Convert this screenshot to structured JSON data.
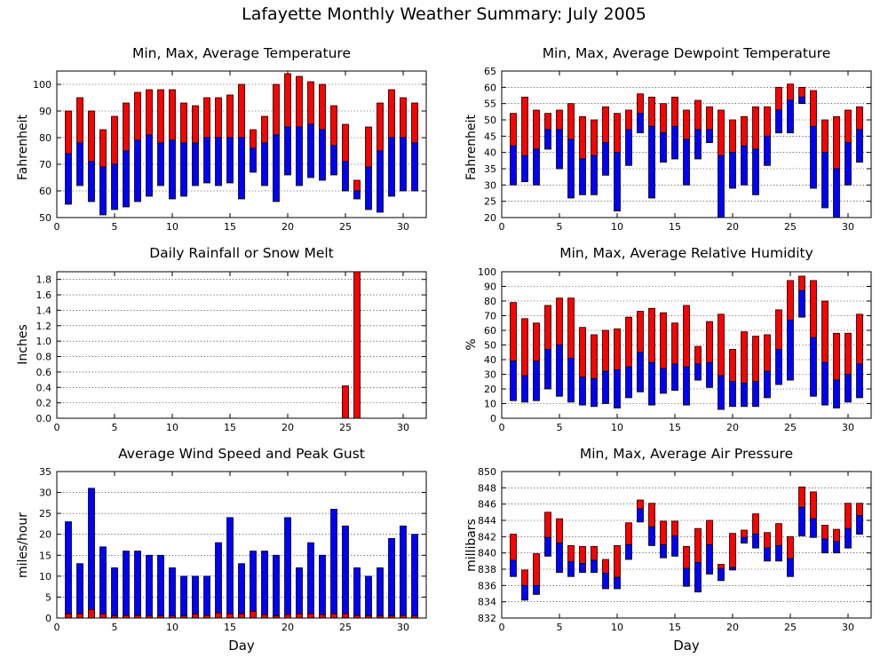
{
  "title": "Lafayette Monthly Weather Summary: July 2005",
  "colors": {
    "red": "#ff0000",
    "blue": "#0000ff",
    "grid": "#000000"
  },
  "chart_data": [
    {
      "id": "temp",
      "type": "bar",
      "style": "range",
      "title": "Min, Max, Average Temperature",
      "xlabel": "",
      "ylabel": "Fahrenheit",
      "xlim": [
        0,
        32
      ],
      "ylim": [
        50,
        105
      ],
      "xticks": [
        0,
        5,
        10,
        15,
        20,
        25,
        30
      ],
      "yticks": [
        50,
        60,
        70,
        80,
        90,
        100
      ],
      "days": [
        1,
        2,
        3,
        4,
        5,
        6,
        7,
        8,
        9,
        10,
        11,
        12,
        13,
        14,
        15,
        16,
        17,
        18,
        19,
        20,
        21,
        22,
        23,
        24,
        25,
        26,
        27,
        28,
        29,
        30,
        31
      ],
      "min": [
        55,
        62,
        56,
        51,
        53,
        54,
        56,
        58,
        62,
        57,
        58,
        62,
        63,
        62,
        63,
        57,
        67,
        62,
        56,
        66,
        62,
        65,
        64,
        66,
        60,
        57,
        53,
        52,
        58,
        60,
        60
      ],
      "avg": [
        74,
        78,
        71,
        69,
        70,
        75,
        79,
        81,
        78,
        79,
        78,
        78,
        80,
        80,
        80,
        80,
        76,
        78,
        81,
        84,
        84,
        85,
        83,
        77,
        71,
        60,
        69,
        75,
        80,
        80,
        78
      ],
      "max": [
        90,
        95,
        90,
        83,
        88,
        93,
        97,
        98,
        98,
        98,
        93,
        92,
        95,
        95,
        96,
        100,
        83,
        88,
        100,
        104,
        103,
        101,
        100,
        92,
        85,
        64,
        84,
        93,
        98,
        95,
        93
      ]
    },
    {
      "id": "dewpoint",
      "type": "bar",
      "style": "range",
      "title": "Min, Max, Average Dewpoint Temperature",
      "xlabel": "",
      "ylabel": "Fahrenheit",
      "xlim": [
        0,
        32
      ],
      "ylim": [
        20,
        65
      ],
      "xticks": [
        0,
        5,
        10,
        15,
        20,
        25,
        30
      ],
      "yticks": [
        20,
        25,
        30,
        35,
        40,
        45,
        50,
        55,
        60,
        65
      ],
      "days": [
        1,
        2,
        3,
        4,
        5,
        6,
        7,
        8,
        9,
        10,
        11,
        12,
        13,
        14,
        15,
        16,
        17,
        18,
        19,
        20,
        21,
        22,
        23,
        24,
        25,
        26,
        27,
        28,
        29,
        30,
        31
      ],
      "min": [
        30,
        31,
        30,
        41,
        35,
        26,
        27,
        27,
        33,
        22,
        36,
        46,
        26,
        37,
        38,
        30,
        38,
        43,
        20,
        29,
        30,
        27,
        36,
        46,
        46,
        55,
        29,
        23,
        20,
        30,
        37
      ],
      "avg": [
        42,
        39,
        41,
        47,
        47,
        44,
        38,
        39,
        43,
        40,
        47,
        52,
        48,
        46,
        48,
        44,
        47,
        47,
        39,
        40,
        42,
        41,
        45,
        53,
        56,
        57,
        48,
        40,
        35,
        43,
        47
      ],
      "max": [
        52,
        57,
        53,
        52,
        53,
        55,
        51,
        50,
        54,
        52,
        53,
        58,
        57,
        55,
        57,
        53,
        56,
        54,
        53,
        50,
        51,
        54,
        54,
        60,
        61,
        60,
        59,
        50,
        51,
        53,
        54
      ]
    },
    {
      "id": "rain",
      "type": "bar",
      "title": "Daily Rainfall or Snow Melt",
      "xlabel": "",
      "ylabel": "Inches",
      "xlim": [
        0,
        32
      ],
      "ylim": [
        0,
        1.9
      ],
      "xticks": [
        0,
        5,
        10,
        15,
        20,
        25,
        30
      ],
      "yticks": [
        "0.0",
        "0.2",
        "0.4",
        "0.6",
        "0.8",
        "1.0",
        "1.2",
        "1.4",
        "1.6",
        "1.8"
      ],
      "days": [
        25,
        26
      ],
      "values": [
        0.42,
        1.9
      ]
    },
    {
      "id": "humidity",
      "type": "bar",
      "style": "range",
      "title": "Min, Max, Average Relative Humidity",
      "xlabel": "",
      "ylabel": "%",
      "xlim": [
        0,
        32
      ],
      "ylim": [
        0,
        100
      ],
      "xticks": [
        0,
        5,
        10,
        15,
        20,
        25,
        30
      ],
      "yticks": [
        0,
        10,
        20,
        30,
        40,
        50,
        60,
        70,
        80,
        90,
        100
      ],
      "days": [
        1,
        2,
        3,
        4,
        5,
        6,
        7,
        8,
        9,
        10,
        11,
        12,
        13,
        14,
        15,
        16,
        17,
        18,
        19,
        20,
        21,
        22,
        23,
        24,
        25,
        26,
        27,
        28,
        29,
        30,
        31
      ],
      "min": [
        12,
        11,
        12,
        20,
        15,
        11,
        9,
        8,
        10,
        7,
        14,
        18,
        9,
        17,
        19,
        9,
        26,
        21,
        6,
        8,
        8,
        8,
        14,
        23,
        26,
        69,
        15,
        9,
        7,
        11,
        14
      ],
      "avg": [
        39,
        29,
        39,
        47,
        50,
        41,
        28,
        27,
        32,
        33,
        35,
        45,
        38,
        34,
        37,
        35,
        37,
        38,
        29,
        25,
        24,
        25,
        32,
        47,
        67,
        87,
        55,
        38,
        26,
        30,
        37
      ],
      "max": [
        79,
        68,
        65,
        77,
        82,
        82,
        62,
        57,
        60,
        61,
        69,
        73,
        75,
        72,
        65,
        77,
        49,
        66,
        71,
        47,
        59,
        56,
        57,
        74,
        94,
        97,
        94,
        80,
        58,
        58,
        71
      ]
    },
    {
      "id": "wind",
      "type": "bar",
      "style": "stacked",
      "title": "Average Wind Speed and Peak Gust",
      "xlabel": "Day",
      "ylabel": "miles/hour",
      "xlim": [
        0,
        32
      ],
      "ylim": [
        0,
        35
      ],
      "xticks": [
        0,
        5,
        10,
        15,
        20,
        25,
        30
      ],
      "yticks": [
        0,
        5,
        10,
        15,
        20,
        25,
        30,
        35
      ],
      "days": [
        1,
        2,
        3,
        4,
        5,
        6,
        7,
        8,
        9,
        10,
        11,
        12,
        13,
        14,
        15,
        16,
        17,
        18,
        19,
        20,
        21,
        22,
        23,
        24,
        25,
        26,
        27,
        28,
        29,
        30,
        31
      ],
      "avg": [
        1,
        1,
        2,
        1,
        0.5,
        0.6,
        0.6,
        0.5,
        0.5,
        0.5,
        0.5,
        0.9,
        0.6,
        1.2,
        1,
        1,
        1.6,
        0.8,
        0.5,
        0.8,
        1,
        1,
        0.8,
        1,
        1,
        0.6,
        0.5,
        0.5,
        0.5,
        0.6,
        0.5
      ],
      "gust": [
        23,
        13,
        31,
        17,
        12,
        16,
        16,
        15,
        15,
        12,
        10,
        10,
        10,
        18,
        24,
        13,
        16,
        16,
        15,
        24,
        12,
        18,
        15,
        26,
        22,
        12,
        10,
        12,
        19,
        22,
        20
      ]
    },
    {
      "id": "pressure",
      "type": "bar",
      "style": "range",
      "title": "Min, Max, Average Air Pressure",
      "xlabel": "Day",
      "ylabel": "millibars",
      "xlim": [
        0,
        32
      ],
      "ylim": [
        832,
        850
      ],
      "xticks": [
        0,
        5,
        10,
        15,
        20,
        25,
        30
      ],
      "yticks": [
        832,
        834,
        836,
        838,
        840,
        842,
        844,
        846,
        848,
        850
      ],
      "days": [
        1,
        2,
        3,
        4,
        5,
        6,
        7,
        8,
        9,
        10,
        11,
        12,
        13,
        14,
        15,
        16,
        17,
        18,
        19,
        20,
        21,
        22,
        23,
        24,
        25,
        26,
        27,
        28,
        29,
        30,
        31
      ],
      "min": [
        837.1,
        834.2,
        834.9,
        839.6,
        837.6,
        837.1,
        837.6,
        837.6,
        835.6,
        835.6,
        839.2,
        843.8,
        840.9,
        839.4,
        839.6,
        835.9,
        835.2,
        837.4,
        836.6,
        837.9,
        841.2,
        840.6,
        839.0,
        839.0,
        837.1,
        842.1,
        841.9,
        840.0,
        840.0,
        840.6,
        842.3
      ],
      "avg": [
        839.1,
        836.0,
        836.0,
        841.9,
        841.2,
        838.9,
        838.7,
        839.1,
        837.5,
        837.0,
        841.0,
        845.4,
        843.2,
        841.0,
        842.1,
        838.1,
        838.8,
        841.0,
        838.1,
        838.2,
        841.9,
        842.3,
        840.6,
        840.9,
        839.3,
        845.6,
        844.2,
        841.7,
        841.4,
        843.0,
        844.6
      ],
      "max": [
        842.3,
        837.9,
        839.9,
        845.0,
        844.2,
        840.9,
        840.8,
        840.8,
        839.2,
        840.9,
        843.7,
        846.5,
        846.1,
        843.9,
        843.9,
        840.8,
        843.0,
        844.0,
        838.6,
        842.4,
        842.8,
        844.8,
        842.5,
        843.6,
        842.0,
        848.1,
        847.5,
        843.4,
        842.9,
        846.1,
        846.1
      ]
    }
  ]
}
